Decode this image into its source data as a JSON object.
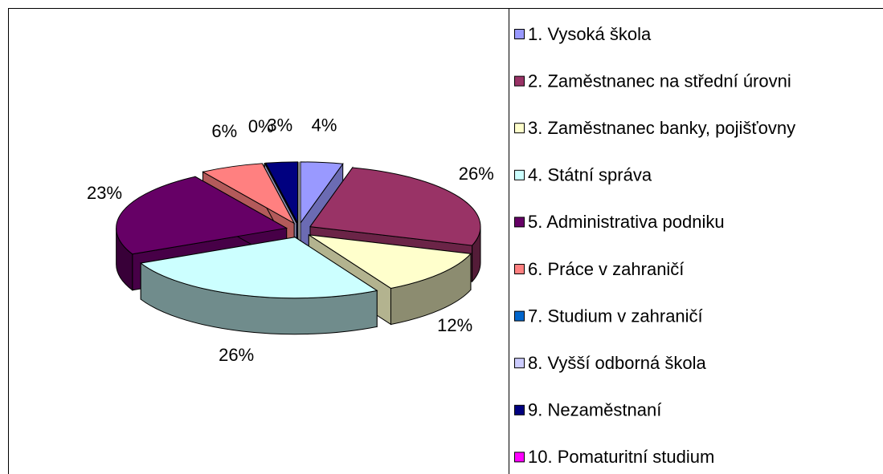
{
  "chart_data": {
    "type": "pie3d",
    "categories": [
      "1. Vysoká škola",
      "2. Zaměstnanec na střední úrovni",
      "3. Zaměstnanec banky, pojišťovny",
      "4. Státní správa",
      "5. Administrativa podniku",
      "6. Práce v zahraničí",
      "7. Studium v zahraničí",
      "8. Vyšší odborná škola",
      "9. Nezaměstnaní",
      "10. Pomaturitní studium"
    ],
    "values": [
      4,
      26,
      12,
      26,
      23,
      6,
      0,
      0,
      3,
      0
    ],
    "value_labels": [
      "4%",
      "26%",
      "12%",
      "26%",
      "23%",
      "6%",
      "0%",
      null,
      "3%",
      null
    ],
    "colors": [
      "#9999ff",
      "#993366",
      "#ffffcc",
      "#ccffff",
      "#660066",
      "#ff8080",
      "#0066cc",
      "#ccccff",
      "#000080",
      "#ff00ff"
    ],
    "legend": "right"
  }
}
